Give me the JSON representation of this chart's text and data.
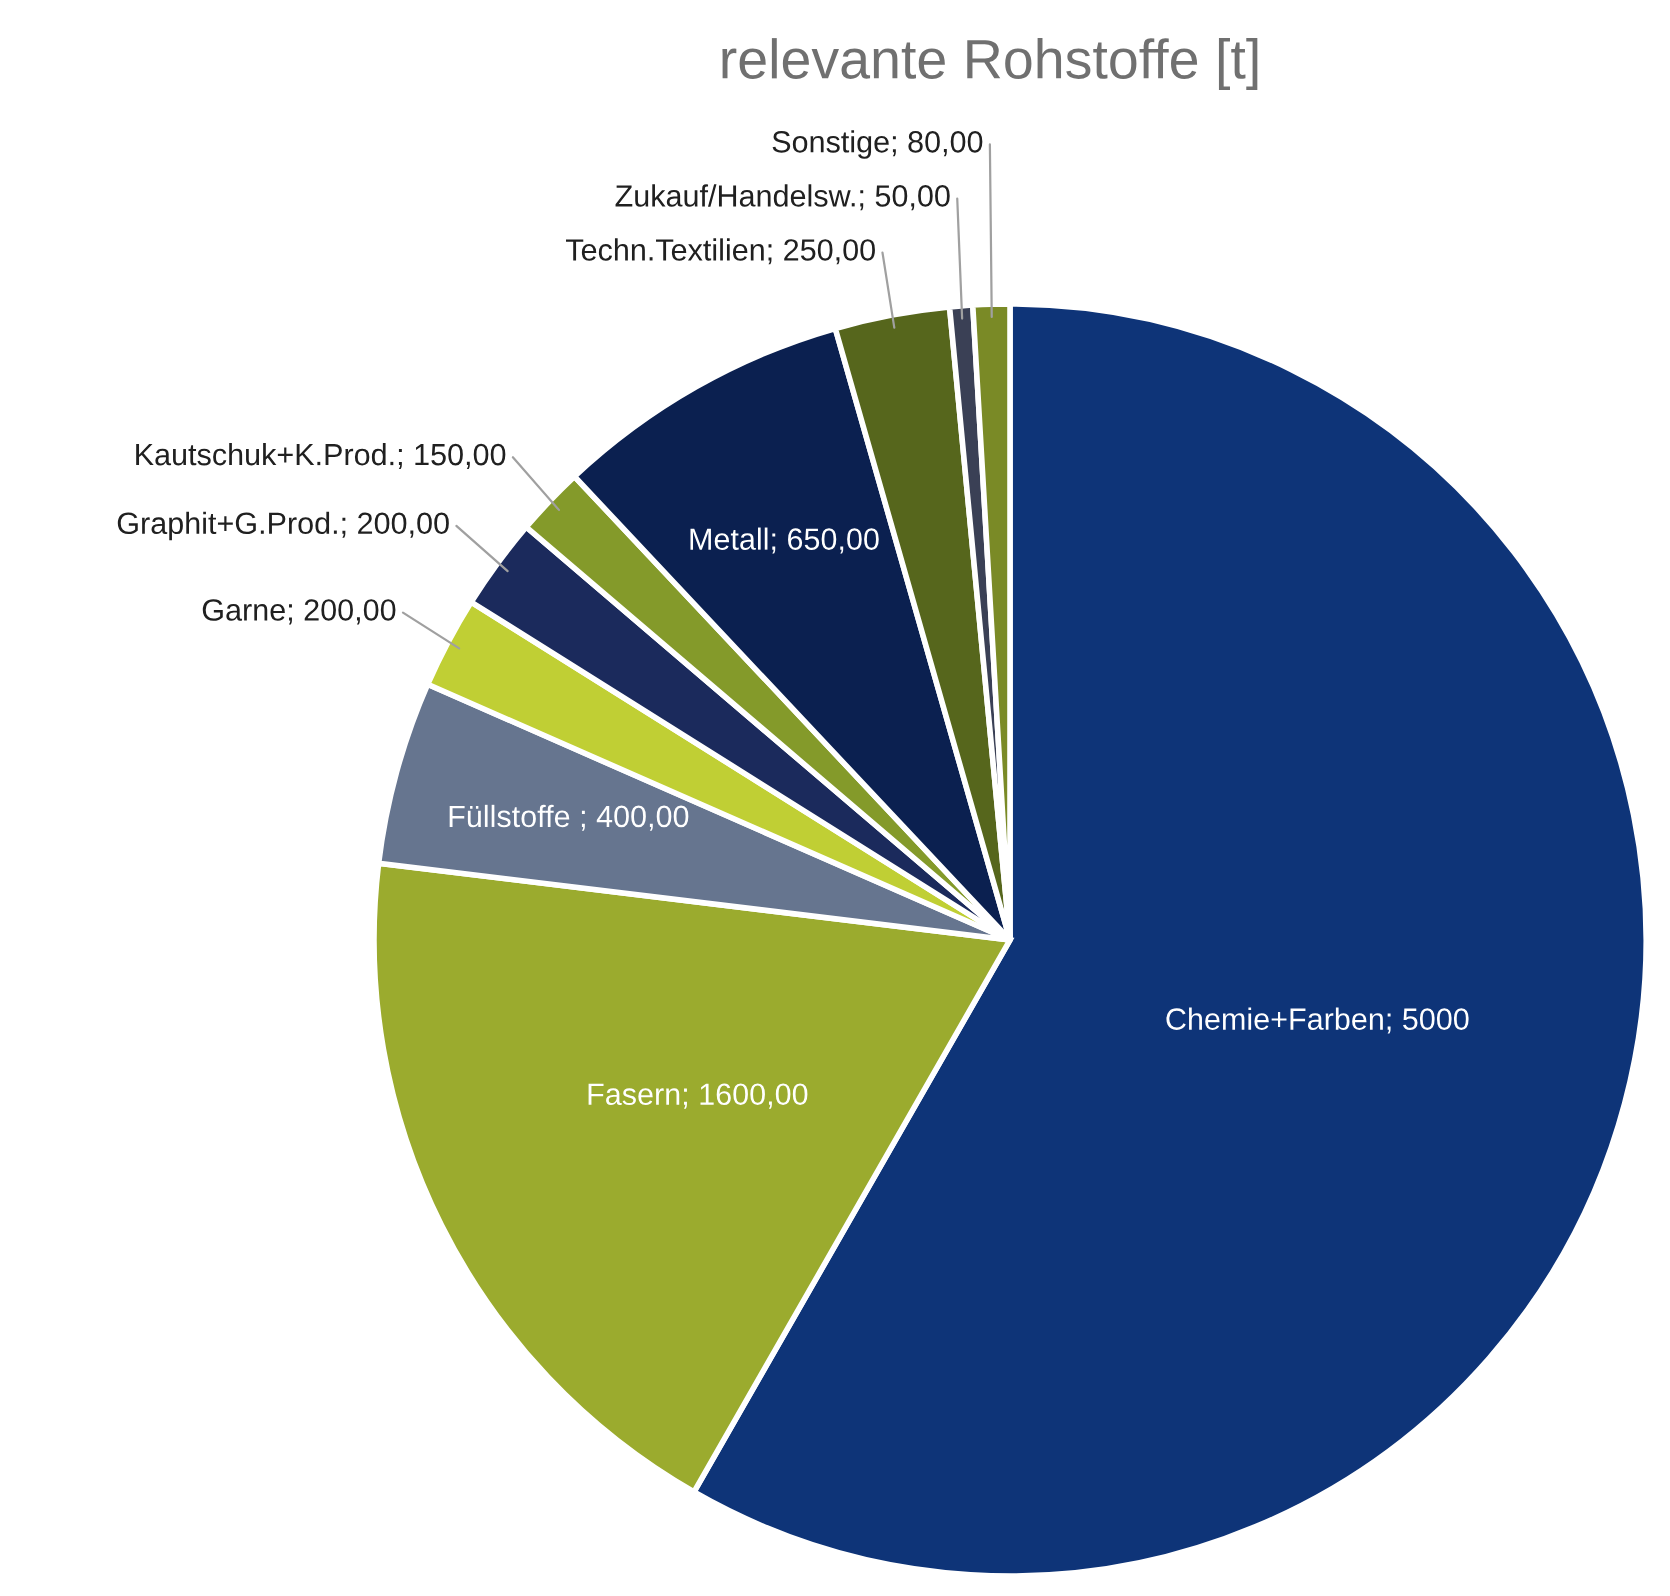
{
  "chart_data": {
    "type": "pie",
    "title": "relevante Rohstoffe [t]",
    "categories": [
      "Chemie+Farben",
      "Fasern",
      "Füllstoffe ",
      "Garne",
      "Graphit+G.Prod.",
      "Kautschuk+K.Prod.",
      "Metall",
      "Techn.Textilien",
      "Zukauf/Handelsw.",
      "Sonstige"
    ],
    "values": [
      5000,
      1600,
      400,
      200,
      200,
      150,
      650,
      250,
      50,
      80
    ],
    "value_labels": [
      "5000",
      "1600,00",
      "400,00",
      "200,00",
      "200,00",
      "150,00",
      "650,00",
      "250,00",
      "50,00",
      "80,00"
    ],
    "colors": [
      "#0e3478",
      "#9bab2e",
      "#66758f",
      "#c0cf34",
      "#1b2a5c",
      "#849a2a",
      "#0b2050",
      "#56661c",
      "#3a4055",
      "#7a8a26"
    ]
  }
}
